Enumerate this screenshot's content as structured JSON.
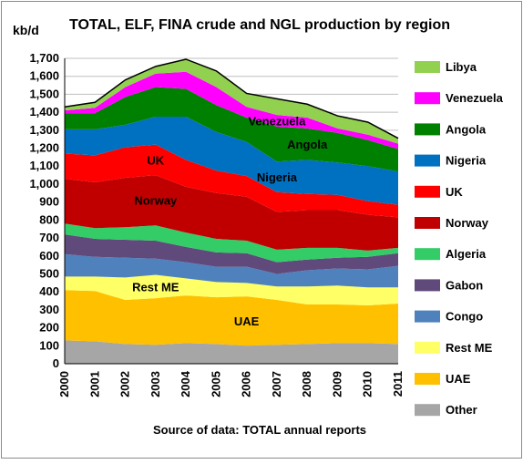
{
  "chart_data": {
    "type": "area",
    "title": "TOTAL, ELF, FINA crude and NGL production by region",
    "ylabel": "kb/d",
    "xlabel": "",
    "source": "Source of data: TOTAL annual reports",
    "ylim": [
      0,
      1700
    ],
    "yticks": [
      "0",
      "100",
      "200",
      "300",
      "400",
      "500",
      "600",
      "700",
      "800",
      "900",
      "1,000",
      "1,100",
      "1,200",
      "1,300",
      "1,400",
      "1,500",
      "1,600",
      "1,700"
    ],
    "x": [
      "2000",
      "2001",
      "2002",
      "2003",
      "2004",
      "2005",
      "2006",
      "2007",
      "2008",
      "2009",
      "2010",
      "2011"
    ],
    "grid": true,
    "legend_position": "right",
    "series": [
      {
        "name": "Other",
        "color": "#a6a6a6",
        "values": [
          130,
          125,
          110,
          105,
          115,
          110,
          100,
          105,
          110,
          115,
          115,
          110
        ]
      },
      {
        "name": "UAE",
        "color": "#ffc000",
        "values": [
          280,
          280,
          245,
          260,
          265,
          260,
          275,
          250,
          220,
          215,
          210,
          225
        ]
      },
      {
        "name": "Rest ME",
        "color": "#ffff66",
        "values": [
          75,
          80,
          125,
          130,
          95,
          85,
          75,
          75,
          100,
          105,
          100,
          90
        ]
      },
      {
        "name": "Congo",
        "color": "#4f81bd",
        "values": [
          125,
          110,
          110,
          90,
          90,
          85,
          90,
          70,
          90,
          95,
          100,
          120
        ]
      },
      {
        "name": "Gabon",
        "color": "#604a7b",
        "values": [
          110,
          100,
          100,
          100,
          85,
          80,
          75,
          65,
          60,
          60,
          70,
          70
        ]
      },
      {
        "name": "Algeria",
        "color": "#33cc66",
        "values": [
          60,
          60,
          70,
          85,
          80,
          75,
          70,
          70,
          65,
          55,
          35,
          30
        ]
      },
      {
        "name": "Norway",
        "color": "#c00000",
        "values": [
          250,
          255,
          275,
          280,
          255,
          255,
          245,
          210,
          210,
          210,
          200,
          170
        ]
      },
      {
        "name": "UK",
        "color": "#ff0000",
        "values": [
          140,
          150,
          170,
          170,
          150,
          125,
          115,
          110,
          90,
          85,
          75,
          70
        ]
      },
      {
        "name": "Nigeria",
        "color": "#0070c0",
        "values": [
          135,
          145,
          125,
          155,
          240,
          215,
          190,
          170,
          190,
          180,
          195,
          185
        ]
      },
      {
        "name": "Angola",
        "color": "#008000",
        "values": [
          90,
          90,
          155,
          165,
          155,
          150,
          135,
          195,
          175,
          165,
          145,
          125
        ]
      },
      {
        "name": "Venezuela",
        "color": "#ff00ff",
        "values": [
          15,
          30,
          55,
          75,
          95,
          100,
          60,
          65,
          60,
          25,
          30,
          30
        ]
      },
      {
        "name": "Libya",
        "color": "#92d050",
        "values": [
          20,
          30,
          40,
          40,
          70,
          90,
          75,
          90,
          75,
          70,
          70,
          30
        ]
      }
    ],
    "annotations": [
      {
        "text": "Venezuela",
        "series": "Venezuela",
        "x": "2007"
      },
      {
        "text": "Angola",
        "series": "Angola",
        "x": "2008"
      },
      {
        "text": "Nigeria",
        "series": "Nigeria",
        "x": "2007"
      },
      {
        "text": "UK",
        "series": "UK",
        "x": "2003"
      },
      {
        "text": "Norway",
        "series": "Norway",
        "x": "2003"
      },
      {
        "text": "Rest ME",
        "series": "Rest ME",
        "x": "2003"
      },
      {
        "text": "UAE",
        "series": "UAE",
        "x": "2006"
      }
    ]
  }
}
